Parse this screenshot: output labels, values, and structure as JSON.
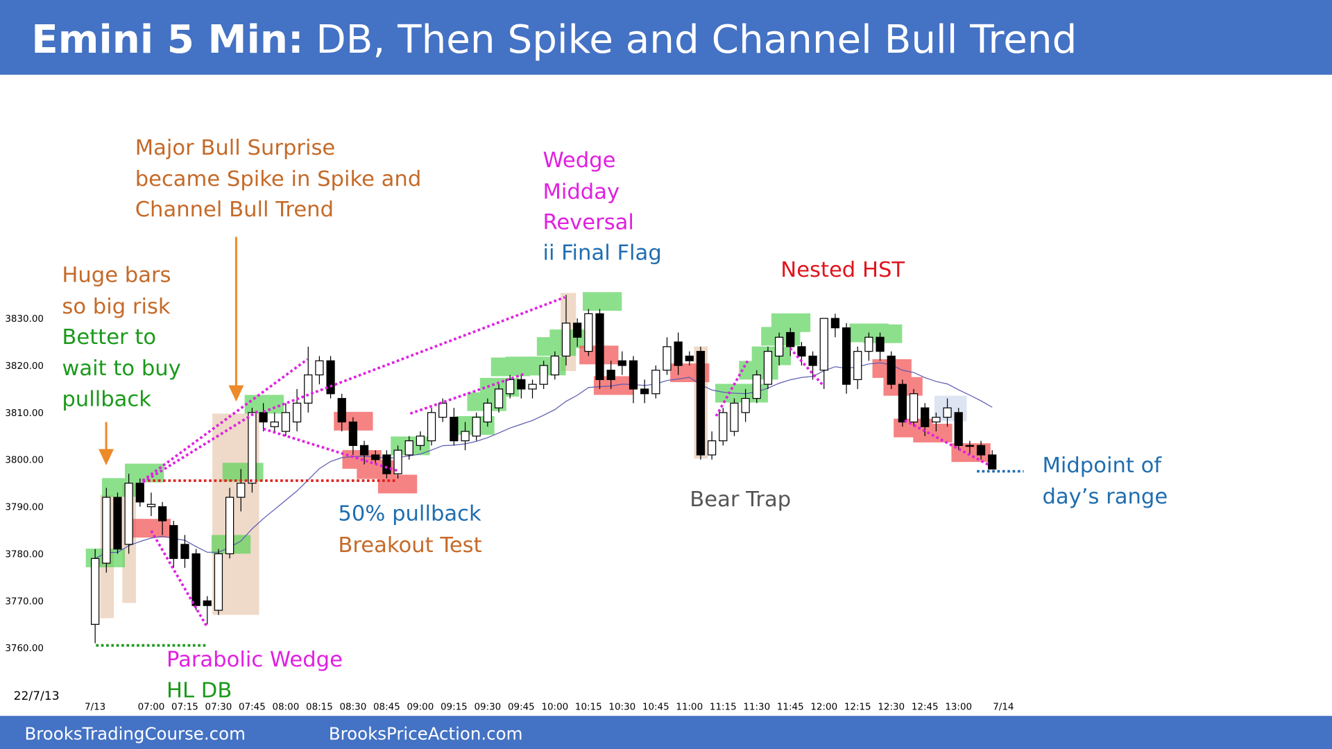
{
  "header": {
    "title_bold": "Emini 5 Min:",
    "title": "DB, Then Spike and Channel Bull Trend"
  },
  "footer": {
    "left": "BrooksTradingCourse.com",
    "right": "BrooksPriceAction.com"
  },
  "chart_data": {
    "type": "candlestick",
    "date": "22/7/13",
    "ylim": [
      3750,
      3850
    ],
    "yticks": [
      {
        "value": 3760,
        "label": "3760.00"
      },
      {
        "value": 3770,
        "label": "3770.00"
      },
      {
        "value": 3780,
        "label": "3780.00"
      },
      {
        "value": 3790,
        "label": "3790.00"
      },
      {
        "value": 3800,
        "label": "3800.00"
      },
      {
        "value": 3810,
        "label": "3810.00"
      },
      {
        "value": 3820,
        "label": "3820.00"
      },
      {
        "value": 3830,
        "label": "3830.00"
      }
    ],
    "xlim": [
      -0.5,
      81.5
    ],
    "xticks": [
      {
        "value": 0,
        "label": "7/13"
      },
      {
        "value": 5,
        "label": "07:00"
      },
      {
        "value": 8,
        "label": "07:15"
      },
      {
        "value": 11,
        "label": "07:30"
      },
      {
        "value": 14,
        "label": "07:45"
      },
      {
        "value": 17,
        "label": "08:00"
      },
      {
        "value": 20,
        "label": "08:15"
      },
      {
        "value": 23,
        "label": "08:30"
      },
      {
        "value": 26,
        "label": "08:45"
      },
      {
        "value": 29,
        "label": "09:00"
      },
      {
        "value": 32,
        "label": "09:15"
      },
      {
        "value": 35,
        "label": "09:30"
      },
      {
        "value": 38,
        "label": "09:45"
      },
      {
        "value": 41,
        "label": "10:00"
      },
      {
        "value": 44,
        "label": "10:15"
      },
      {
        "value": 47,
        "label": "10:30"
      },
      {
        "value": 50,
        "label": "10:45"
      },
      {
        "value": 53,
        "label": "11:00"
      },
      {
        "value": 56,
        "label": "11:15"
      },
      {
        "value": 59,
        "label": "11:30"
      },
      {
        "value": 62,
        "label": "11:45"
      },
      {
        "value": 65,
        "label": "12:00"
      },
      {
        "value": 68,
        "label": "12:15"
      },
      {
        "value": 71,
        "label": "12:30"
      },
      {
        "value": 74,
        "label": "12:45"
      },
      {
        "value": 77,
        "label": "13:00"
      },
      {
        "value": 81,
        "label": "7/14"
      }
    ],
    "ohlc": [
      [
        3765,
        3781,
        3761,
        3779
      ],
      [
        3778,
        3794,
        3776,
        3792
      ],
      [
        3792,
        3793,
        3780,
        3781
      ],
      [
        3782,
        3797,
        3780,
        3795
      ],
      [
        3795,
        3796,
        3790,
        3791
      ],
      [
        3790,
        3793,
        3788,
        3790.5
      ],
      [
        3790,
        3791,
        3784,
        3787
      ],
      [
        3786,
        3787,
        3777,
        3779
      ],
      [
        3782,
        3784,
        3777,
        3779
      ],
      [
        3780,
        3781,
        3768,
        3769
      ],
      [
        3770,
        3771,
        3765,
        3769
      ],
      [
        3768,
        3781,
        3767,
        3780
      ],
      [
        3780,
        3794,
        3779,
        3792
      ],
      [
        3792,
        3798,
        3789,
        3795
      ],
      [
        3795,
        3811,
        3793,
        3810
      ],
      [
        3810,
        3812,
        3806,
        3808
      ],
      [
        3807,
        3810,
        3806,
        3808
      ],
      [
        3806,
        3812,
        3805,
        3810
      ],
      [
        3808,
        3815,
        3806,
        3812
      ],
      [
        3812,
        3824,
        3810,
        3818
      ],
      [
        3818,
        3822,
        3816,
        3821
      ],
      [
        3821,
        3822,
        3813,
        3814
      ],
      [
        3813,
        3814,
        3806,
        3808
      ],
      [
        3808,
        3809,
        3801,
        3803
      ],
      [
        3803,
        3804,
        3799,
        3801
      ],
      [
        3801,
        3802,
        3799,
        3800
      ],
      [
        3801,
        3802,
        3796,
        3797
      ],
      [
        3797,
        3803,
        3796,
        3802
      ],
      [
        3801,
        3805,
        3800,
        3804
      ],
      [
        3803,
        3806,
        3802,
        3805
      ],
      [
        3804,
        3811,
        3803,
        3810
      ],
      [
        3809,
        3813,
        3808,
        3812
      ],
      [
        3809,
        3811,
        3803,
        3804
      ],
      [
        3804,
        3808,
        3802,
        3806
      ],
      [
        3805,
        3810,
        3804,
        3809
      ],
      [
        3808,
        3813,
        3807,
        3812
      ],
      [
        3811,
        3816,
        3810,
        3815
      ],
      [
        3814,
        3818,
        3813,
        3817
      ],
      [
        3817,
        3818,
        3813,
        3815
      ],
      [
        3815,
        3817,
        3813,
        3816
      ],
      [
        3816,
        3821,
        3815,
        3820
      ],
      [
        3818,
        3823,
        3817,
        3822
      ],
      [
        3822,
        3835,
        3820,
        3829
      ],
      [
        3829,
        3830,
        3824,
        3826
      ],
      [
        3823,
        3832,
        3822,
        3831
      ],
      [
        3831,
        3832,
        3815,
        3817
      ],
      [
        3819,
        3821,
        3815,
        3817
      ],
      [
        3821,
        3823,
        3818,
        3820
      ],
      [
        3821,
        3822,
        3812,
        3815
      ],
      [
        3815,
        3817,
        3812,
        3814
      ],
      [
        3814,
        3820,
        3813,
        3819
      ],
      [
        3819,
        3826,
        3818,
        3824
      ],
      [
        3825,
        3827,
        3818,
        3820
      ],
      [
        3822,
        3823,
        3820,
        3821
      ],
      [
        3823,
        3824,
        3800,
        3801
      ],
      [
        3801,
        3806,
        3800,
        3804
      ],
      [
        3804,
        3811,
        3803,
        3810
      ],
      [
        3806,
        3813,
        3805,
        3812
      ],
      [
        3810,
        3815,
        3808,
        3813
      ],
      [
        3813,
        3819,
        3812,
        3818
      ],
      [
        3816,
        3824,
        3815,
        3823
      ],
      [
        3822,
        3827,
        3820,
        3826
      ],
      [
        3827,
        3828,
        3822,
        3824
      ],
      [
        3824,
        3825,
        3820,
        3822
      ],
      [
        3822,
        3823,
        3817,
        3820
      ],
      [
        3819,
        3830,
        3815,
        3830
      ],
      [
        3830,
        3831,
        3826,
        3828
      ],
      [
        3828,
        3829,
        3814,
        3816
      ],
      [
        3817,
        3824,
        3815,
        3823
      ],
      [
        3823,
        3827,
        3821,
        3826
      ],
      [
        3826,
        3827,
        3821,
        3823
      ],
      [
        3822,
        3823,
        3815,
        3816
      ],
      [
        3816,
        3817,
        3807,
        3808
      ],
      [
        3808,
        3815,
        3807,
        3814
      ],
      [
        3811,
        3812,
        3805,
        3807
      ],
      [
        3808,
        3810,
        3806,
        3809
      ],
      [
        3809,
        3813,
        3807,
        3811
      ],
      [
        3810,
        3811,
        3802,
        3803
      ],
      [
        3803,
        3804,
        3801,
        3803
      ],
      [
        3803,
        3804,
        3800,
        3801
      ],
      [
        3801,
        3802,
        3798,
        3798
      ]
    ],
    "annotations": [
      "Major Bull Surprise",
      "became Spike in Spike and",
      "Channel Bull Trend",
      "Huge bars",
      "so big risk",
      "Better to",
      "wait to buy",
      "pullback",
      "Wedge",
      "Midday",
      "Reversal",
      "ii Final Flag",
      "Nested HST",
      "50% pullback",
      "Breakout Test",
      "Bear Trap",
      "Midpoint of",
      "day’s range",
      "Parabolic Wedge",
      "HL DB"
    ]
  }
}
